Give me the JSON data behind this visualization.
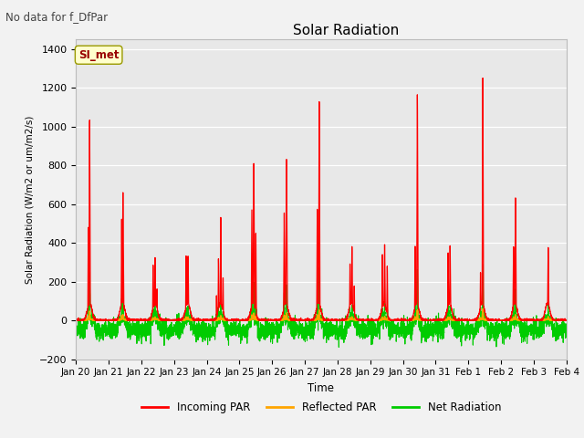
{
  "title": "Solar Radiation",
  "subtitle": "No data for f_DfPar",
  "xlabel": "Time",
  "ylabel": "Solar Radiation (W/m2 or um/m2/s)",
  "ylim": [
    -200,
    1450
  ],
  "legend_labels": [
    "Incoming PAR",
    "Reflected PAR",
    "Net Radiation"
  ],
  "legend_colors": [
    "#ff0000",
    "#ffa500",
    "#00cc00"
  ],
  "plot_bg_color": "#e8e8e8",
  "annotation_box": "SI_met",
  "annotation_color": "#990000",
  "annotation_bg": "#ffffcc",
  "tick_labels": [
    "Jan 20",
    "Jan 21",
    "Jan 22",
    "Jan 23",
    "Jan 24",
    "Jan 25",
    "Jan 26",
    "Jan 27",
    "Jan 28",
    "Jan 29",
    "Jan 30",
    "Jan 31",
    "Feb 1",
    "Feb 2",
    "Feb 3",
    "Feb 4"
  ],
  "grid_color": "#ffffff",
  "line_width": 1.0,
  "yticks": [
    -200,
    0,
    200,
    400,
    600,
    800,
    1000,
    1200,
    1400
  ]
}
